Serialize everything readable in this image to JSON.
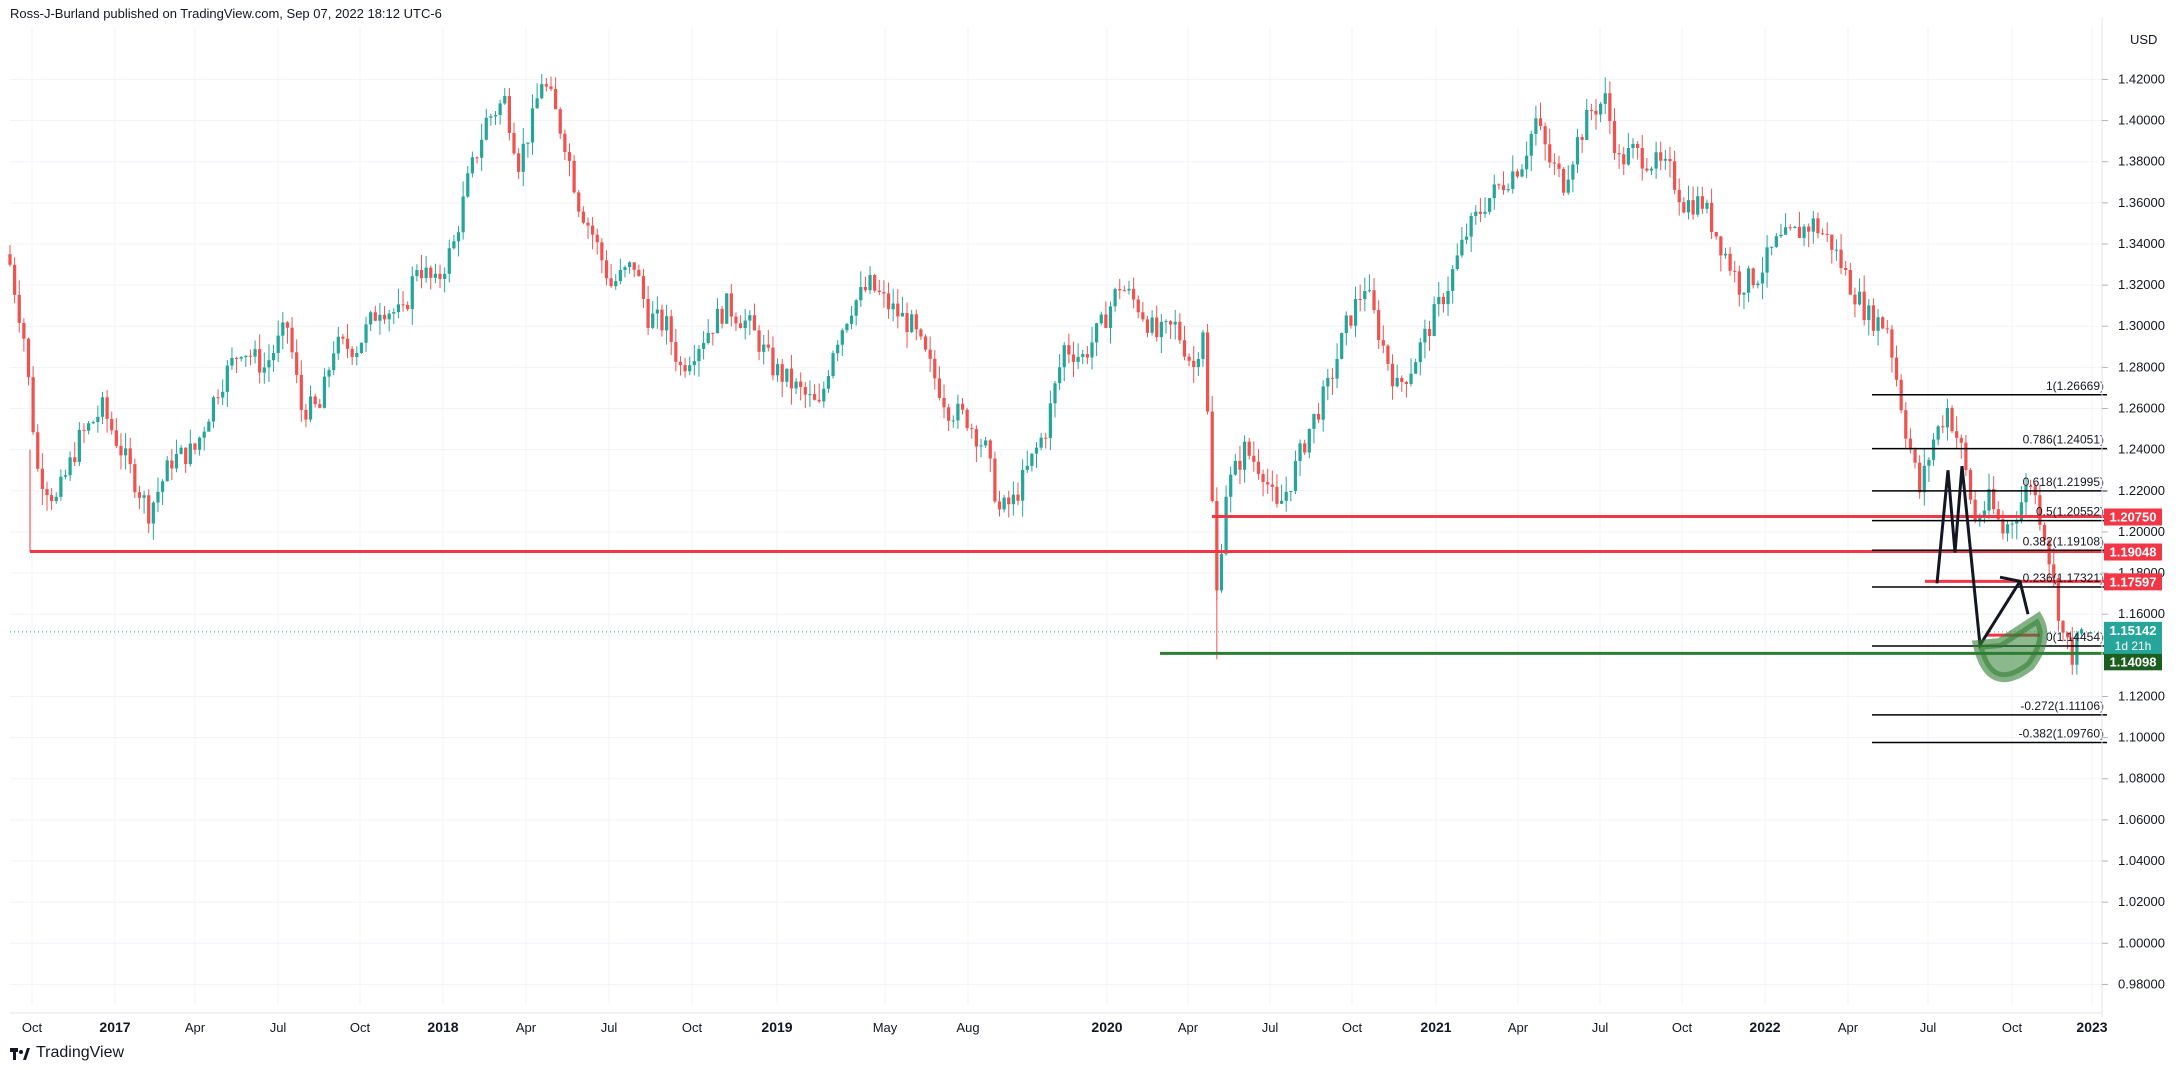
{
  "header": {
    "text": "Ross-J-Burland published on TradingView.com, Sep 07, 2022 18:12 UTC-6"
  },
  "footer": {
    "brand": "TradingView"
  },
  "colors": {
    "up": "#26a69a",
    "down": "#ef5350",
    "grid": "#f0f3fa",
    "axis_text": "#131722",
    "fib_line": "#000000",
    "resistance": "#f23645",
    "support": "#2e7d32"
  },
  "chart_data": {
    "type": "candlestick",
    "title": "",
    "y_unit": "USD",
    "ylim": [
      0.97,
      1.445
    ],
    "y_ticks": [
      "1.42000",
      "1.40000",
      "1.38000",
      "1.36000",
      "1.34000",
      "1.32000",
      "1.30000",
      "1.28000",
      "1.26000",
      "1.24000",
      "1.22000",
      "1.20000",
      "1.18000",
      "1.16000",
      "1.12000",
      "1.10000",
      "1.08000",
      "1.06000",
      "1.04000",
      "1.02000",
      "1.00000",
      "0.98000"
    ],
    "x_ticks": [
      "Oct",
      "2017",
      "Apr",
      "Jul",
      "Oct",
      "2018",
      "Apr",
      "Jul",
      "Oct",
      "2019",
      "May",
      "Aug",
      "2020",
      "Apr",
      "Jul",
      "Oct",
      "2021",
      "Apr",
      "Jul",
      "Oct",
      "2022",
      "Apr",
      "Jul",
      "Oct",
      "2023"
    ],
    "weekly_close_path": [
      [
        0,
        1.33
      ],
      [
        3,
        1.295
      ],
      [
        6,
        1.23
      ],
      [
        10,
        1.215
      ],
      [
        15,
        1.245
      ],
      [
        20,
        1.26
      ],
      [
        25,
        1.235
      ],
      [
        30,
        1.21
      ],
      [
        35,
        1.235
      ],
      [
        40,
        1.24
      ],
      [
        45,
        1.27
      ],
      [
        50,
        1.29
      ],
      [
        55,
        1.28
      ],
      [
        60,
        1.3
      ],
      [
        63,
        1.26
      ],
      [
        67,
        1.26
      ],
      [
        70,
        1.29
      ],
      [
        75,
        1.29
      ],
      [
        80,
        1.31
      ],
      [
        85,
        1.305
      ],
      [
        88,
        1.33
      ],
      [
        92,
        1.32
      ],
      [
        96,
        1.34
      ],
      [
        99,
        1.37
      ],
      [
        103,
        1.4
      ],
      [
        107,
        1.41
      ],
      [
        110,
        1.38
      ],
      [
        113,
        1.4
      ],
      [
        115,
        1.42
      ],
      [
        117,
        1.41
      ],
      [
        120,
        1.39
      ],
      [
        123,
        1.36
      ],
      [
        126,
        1.345
      ],
      [
        130,
        1.32
      ],
      [
        135,
        1.33
      ],
      [
        138,
        1.305
      ],
      [
        142,
        1.3
      ],
      [
        145,
        1.28
      ],
      [
        150,
        1.295
      ],
      [
        155,
        1.31
      ],
      [
        160,
        1.3
      ],
      [
        165,
        1.28
      ],
      [
        170,
        1.27
      ],
      [
        175,
        1.26
      ],
      [
        178,
        1.29
      ],
      [
        182,
        1.31
      ],
      [
        186,
        1.32
      ],
      [
        190,
        1.31
      ],
      [
        195,
        1.3
      ],
      [
        199,
        1.28
      ],
      [
        203,
        1.26
      ],
      [
        207,
        1.255
      ],
      [
        211,
        1.24
      ],
      [
        214,
        1.21
      ],
      [
        217,
        1.215
      ],
      [
        221,
        1.235
      ],
      [
        224,
        1.25
      ],
      [
        228,
        1.29
      ],
      [
        232,
        1.285
      ],
      [
        236,
        1.3
      ],
      [
        240,
        1.32
      ],
      [
        244,
        1.31
      ],
      [
        248,
        1.295
      ],
      [
        252,
        1.3
      ],
      [
        256,
        1.28
      ],
      [
        258,
        1.3
      ],
      [
        261,
        1.17
      ],
      [
        263,
        1.22
      ],
      [
        267,
        1.24
      ],
      [
        271,
        1.23
      ],
      [
        274,
        1.21
      ],
      [
        277,
        1.225
      ],
      [
        281,
        1.25
      ],
      [
        285,
        1.27
      ],
      [
        289,
        1.3
      ],
      [
        293,
        1.32
      ],
      [
        297,
        1.29
      ],
      [
        300,
        1.27
      ],
      [
        303,
        1.28
      ],
      [
        307,
        1.3
      ],
      [
        311,
        1.32
      ],
      [
        315,
        1.345
      ],
      [
        319,
        1.36
      ],
      [
        323,
        1.37
      ],
      [
        327,
        1.38
      ],
      [
        330,
        1.4
      ],
      [
        333,
        1.38
      ],
      [
        336,
        1.37
      ],
      [
        339,
        1.39
      ],
      [
        342,
        1.405
      ],
      [
        345,
        1.41
      ],
      [
        348,
        1.38
      ],
      [
        351,
        1.385
      ],
      [
        355,
        1.38
      ],
      [
        359,
        1.375
      ],
      [
        362,
        1.36
      ],
      [
        366,
        1.36
      ],
      [
        370,
        1.34
      ],
      [
        374,
        1.32
      ],
      [
        378,
        1.325
      ],
      [
        382,
        1.34
      ],
      [
        386,
        1.345
      ],
      [
        390,
        1.35
      ],
      [
        394,
        1.34
      ],
      [
        398,
        1.32
      ],
      [
        402,
        1.305
      ],
      [
        406,
        1.3
      ],
      [
        410,
        1.25
      ],
      [
        413,
        1.22
      ],
      [
        416,
        1.245
      ],
      [
        419,
        1.26
      ],
      [
        422,
        1.24
      ],
      [
        425,
        1.205
      ],
      [
        428,
        1.215
      ],
      [
        431,
        1.2
      ],
      [
        434,
        1.21
      ],
      [
        437,
        1.225
      ],
      [
        440,
        1.2
      ],
      [
        442,
        1.175
      ],
      [
        444,
        1.15
      ],
      [
        446,
        1.14
      ],
      [
        448,
        1.151
      ]
    ],
    "fib_levels": [
      {
        "label": "1(1.26669)",
        "value": 1.26669
      },
      {
        "label": "0.786(1.24051)",
        "value": 1.24051
      },
      {
        "label": "0.618(1.21995)",
        "value": 1.21995
      },
      {
        "label": "0.5(1.20552)",
        "value": 1.20552
      },
      {
        "label": "0.382(1.19108)",
        "value": 1.19108
      },
      {
        "label": "0.236(1.17321)",
        "value": 1.17321
      },
      {
        "label": "0(1.14454)",
        "value": 1.14454
      },
      {
        "label": "-0.272(1.11106)",
        "value": 1.11106
      },
      {
        "label": "-0.382(1.09760)",
        "value": 1.0976
      }
    ],
    "horizontal_levels": [
      {
        "name": "1.20750",
        "value": 1.2075,
        "type": "resistance"
      },
      {
        "name": "1.19048",
        "value": 1.19048,
        "type": "resistance"
      },
      {
        "name": "1.17597",
        "value": 1.17597,
        "type": "resistance"
      },
      {
        "name": "1.14983",
        "value": 1.14983,
        "type": "resistance"
      },
      {
        "name": "1.14098",
        "value": 1.14098,
        "type": "support"
      }
    ],
    "last_price": {
      "value": "1.15142",
      "countdown": "1d 21h"
    }
  }
}
